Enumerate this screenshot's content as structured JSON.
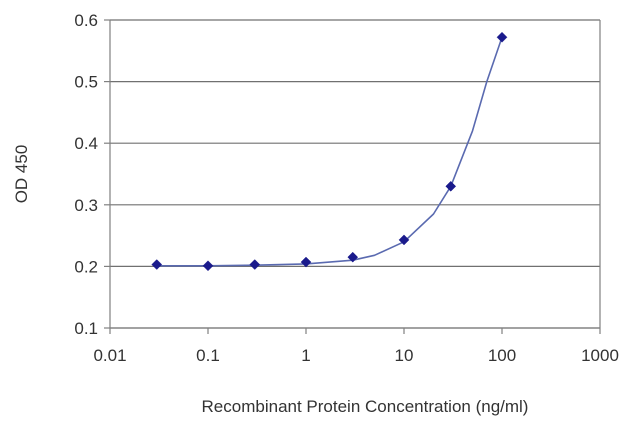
{
  "chart_data": {
    "type": "line",
    "title": "",
    "xlabel": "Recombinant Protein Concentration (ng/ml)",
    "ylabel": "OD 450",
    "x_scale": "log",
    "xlim": [
      0.01,
      1000
    ],
    "ylim": [
      0.1,
      0.6
    ],
    "x_ticks": [
      "0.01",
      "0.1",
      "1",
      "10",
      "100",
      "1000"
    ],
    "y_ticks": [
      "0.1",
      "0.2",
      "0.3",
      "0.4",
      "0.5",
      "0.6"
    ],
    "grid": "horizontal",
    "legend": "none",
    "series": [
      {
        "x": [
          0.03,
          0.1,
          0.3,
          1,
          3,
          10,
          30,
          100
        ],
        "y": [
          0.203,
          0.201,
          0.203,
          0.207,
          0.215,
          0.243,
          0.33,
          0.572
        ],
        "marker": "diamond",
        "color": "#1a1a8c"
      }
    ],
    "curve": {
      "x": [
        0.03,
        0.1,
        0.3,
        1,
        3,
        5,
        10,
        20,
        30,
        50,
        70,
        100
      ],
      "y": [
        0.201,
        0.201,
        0.202,
        0.204,
        0.21,
        0.218,
        0.24,
        0.285,
        0.33,
        0.42,
        0.5,
        0.572
      ],
      "color": "#5a6ab0"
    },
    "colors": {
      "axis": "#808080",
      "grid": "#707070",
      "marker": "#1a1a8c",
      "line": "#5a6ab0"
    }
  }
}
